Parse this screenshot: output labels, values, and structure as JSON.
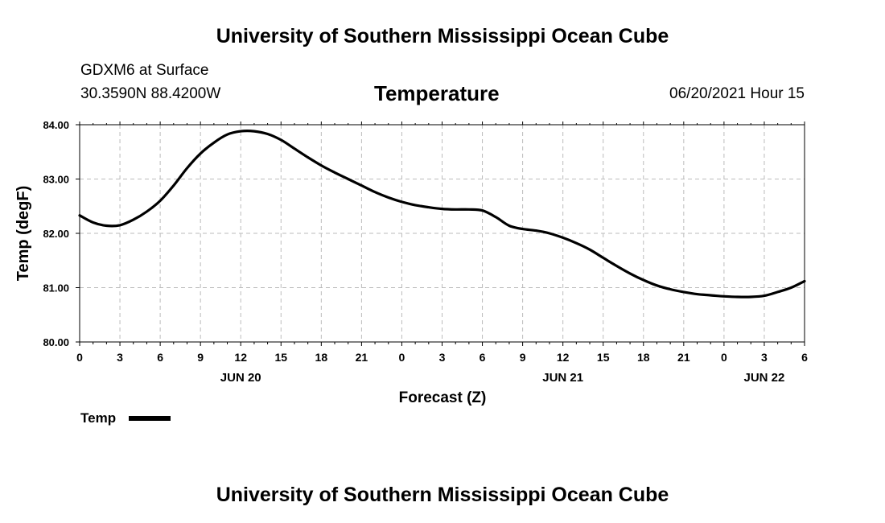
{
  "header": {
    "title": "University of Southern Mississippi Ocean Cube",
    "station": "GDXM6 at Surface",
    "coords": "30.3590N  88.4200W",
    "datetime": "06/20/2021 Hour 15"
  },
  "footer": {
    "title": "University of Southern Mississippi Ocean Cube"
  },
  "colors": {
    "line": "#000000",
    "grid": "#bbbbbb"
  },
  "chart_data": {
    "type": "line",
    "title": "Temperature",
    "xlabel": "Forecast (Z)",
    "ylabel": "Temp (degF)",
    "ylim": [
      80,
      84
    ],
    "xlim": [
      0,
      54
    ],
    "x_tick_labels": [
      "0",
      "3",
      "6",
      "9",
      "12",
      "15",
      "18",
      "21",
      "0",
      "3",
      "6",
      "9",
      "12",
      "15",
      "18",
      "21",
      "0",
      "3",
      "6"
    ],
    "y_tick_labels": [
      "80.00",
      "81.00",
      "82.00",
      "83.00",
      "84.00"
    ],
    "day_labels": [
      {
        "label": "JUN 20",
        "hour": 12
      },
      {
        "label": "JUN 21",
        "hour": 36
      },
      {
        "label": "JUN 22",
        "hour": 51
      }
    ],
    "grid": true,
    "legend": {
      "position": "bottom-left"
    },
    "series": [
      {
        "name": "Temp",
        "x": [
          0,
          1,
          2,
          3,
          4,
          5,
          6,
          7,
          8,
          9,
          10,
          11,
          12,
          13,
          14,
          15,
          16,
          17,
          18,
          19,
          20,
          21,
          22,
          23,
          24,
          25,
          26,
          27,
          28,
          29,
          30,
          31,
          32,
          33,
          34,
          35,
          36,
          37,
          38,
          39,
          40,
          41,
          42,
          43,
          44,
          45,
          46,
          47,
          48,
          49,
          50,
          51,
          52,
          53,
          54
        ],
        "values": [
          82.33,
          82.2,
          82.14,
          82.15,
          82.25,
          82.4,
          82.6,
          82.88,
          83.2,
          83.47,
          83.67,
          83.82,
          83.88,
          83.88,
          83.83,
          83.72,
          83.56,
          83.4,
          83.25,
          83.12,
          83.0,
          82.88,
          82.76,
          82.66,
          82.58,
          82.52,
          82.48,
          82.45,
          82.44,
          82.44,
          82.42,
          82.3,
          82.14,
          82.08,
          82.05,
          82.0,
          81.92,
          81.82,
          81.7,
          81.55,
          81.4,
          81.26,
          81.14,
          81.04,
          80.97,
          80.92,
          80.88,
          80.86,
          80.84,
          80.83,
          80.83,
          80.85,
          80.92,
          81.0,
          81.12
        ]
      }
    ]
  }
}
